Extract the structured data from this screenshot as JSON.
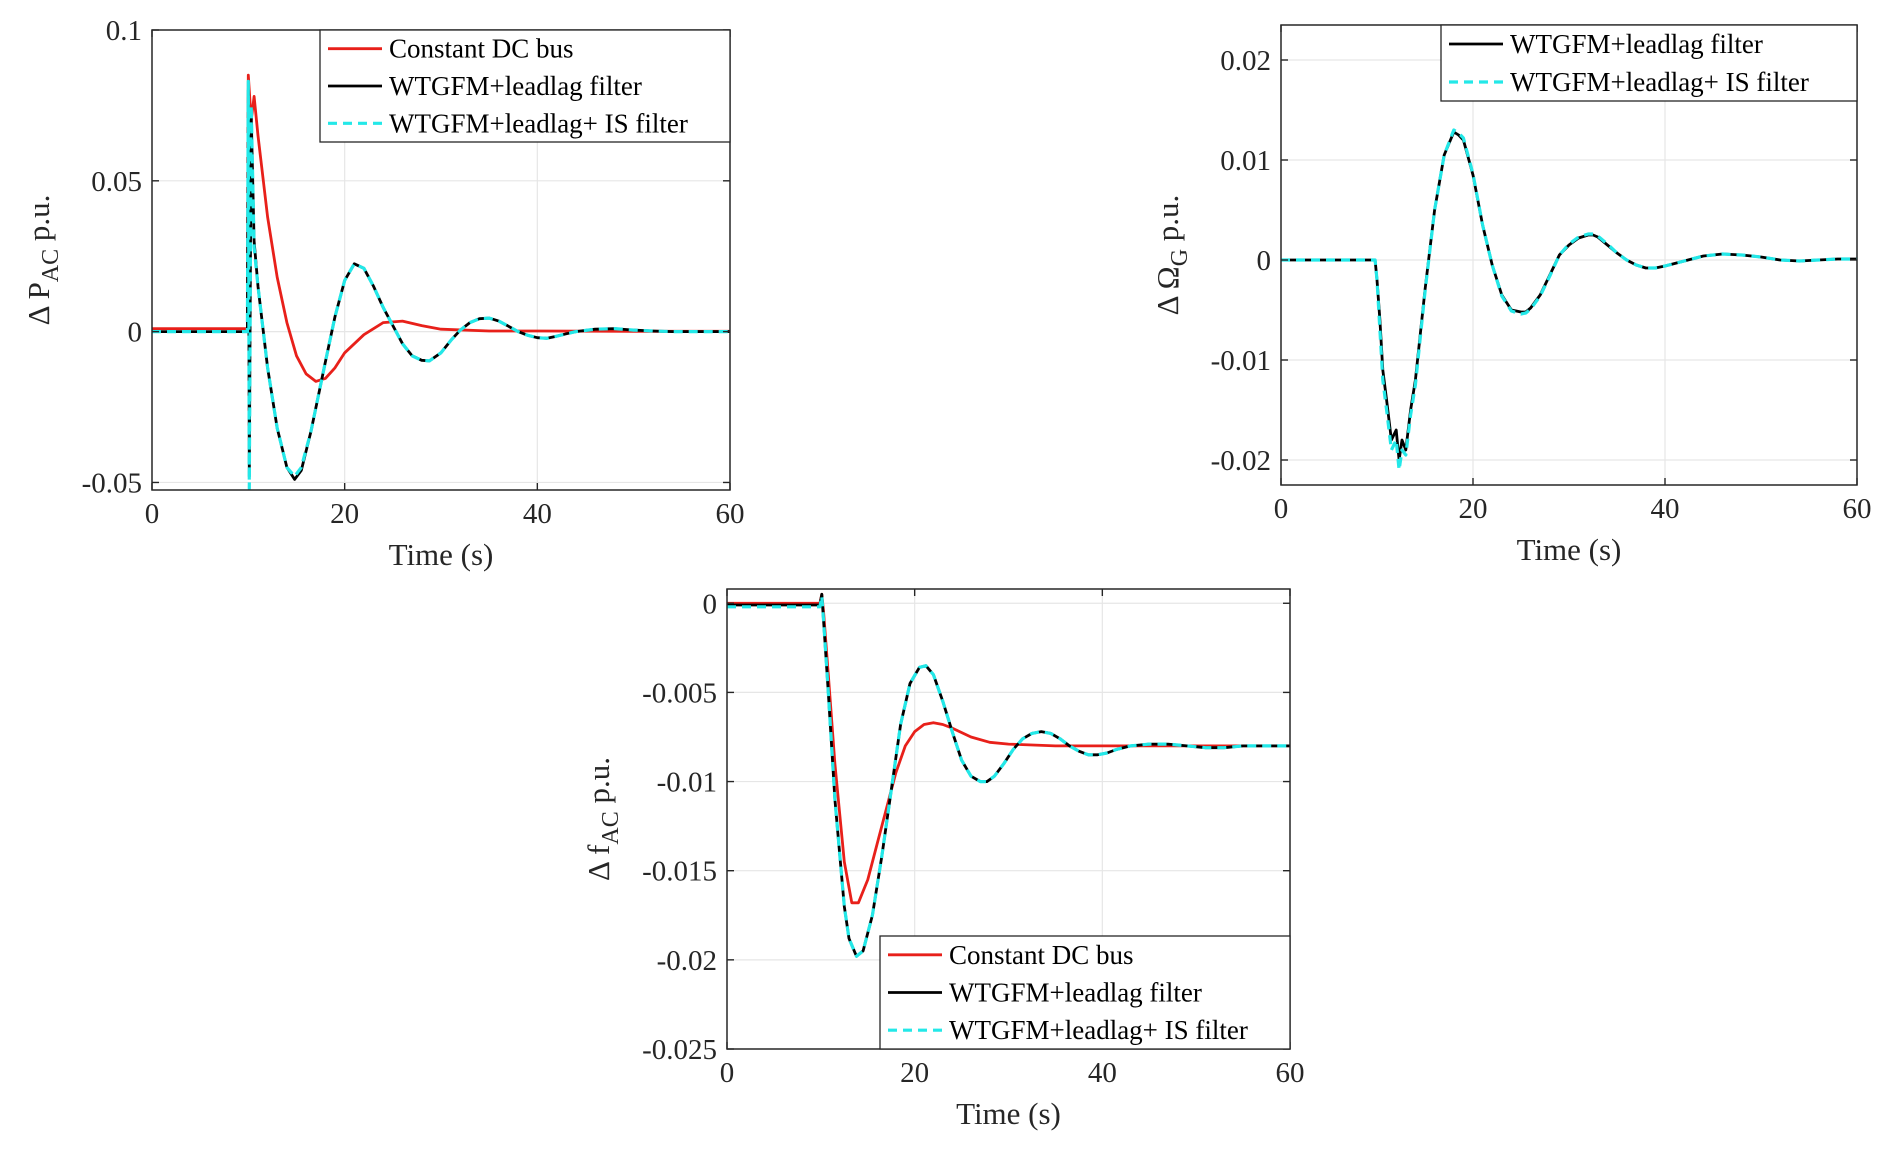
{
  "colors": {
    "constant": "#e8201a",
    "leadlag": "#000000",
    "is_filter": "#23e8e8"
  },
  "chart_data": [
    {
      "id": "pac",
      "type": "line",
      "xlabel": "Time (s)",
      "ylabel_main": "Δ P",
      "ylabel_sub": "AC",
      "ylabel_tail": " p.u.",
      "xlim": [
        0,
        60
      ],
      "ylim": [
        -0.0525,
        0.1
      ],
      "xticks": [
        0,
        20,
        40,
        60
      ],
      "xtick_labels": [
        "0",
        "20",
        "40",
        "60"
      ],
      "yticks": [
        -0.05,
        0,
        0.05,
        0.1
      ],
      "ytick_labels": [
        "-0.05",
        "0",
        "0.05",
        "0.1"
      ],
      "legend_position": "top-right",
      "series": [
        {
          "key": "constant",
          "name": "Constant DC bus",
          "style": "solid",
          "x": [
            0,
            9.9,
            10,
            10.3,
            10.6,
            11,
            12,
            13,
            14,
            15,
            16,
            17,
            18,
            19,
            20,
            22,
            24,
            26,
            28,
            30,
            35,
            40,
            50,
            60
          ],
          "y": [
            0.001,
            0.001,
            0.085,
            0.07,
            0.078,
            0.065,
            0.038,
            0.018,
            0.003,
            -0.008,
            -0.014,
            -0.0165,
            -0.0155,
            -0.012,
            -0.007,
            -0.001,
            0.003,
            0.0035,
            0.002,
            0.0008,
            0.0002,
            0.0002,
            0.0001,
            0.0001
          ]
        },
        {
          "key": "leadlag",
          "name": "WTGFM+leadlag filter",
          "style": "solid",
          "x": [
            0,
            9.9,
            10,
            10.1,
            10.3,
            10.6,
            11,
            12,
            13,
            14,
            14.8,
            15.5,
            16.5,
            18,
            19,
            20,
            21,
            22,
            23,
            24,
            26,
            27,
            28,
            28.8,
            30,
            31,
            32,
            33,
            34,
            35,
            36,
            37,
            38,
            39,
            40,
            41,
            42,
            43,
            44,
            46,
            48,
            50,
            52,
            54,
            56,
            58,
            60
          ],
          "y": [
            0,
            0,
            0.08,
            -0.048,
            0.072,
            0.03,
            0.015,
            -0.012,
            -0.032,
            -0.045,
            -0.049,
            -0.046,
            -0.033,
            -0.01,
            0.005,
            0.017,
            0.0225,
            0.021,
            0.015,
            0.008,
            -0.004,
            -0.008,
            -0.0095,
            -0.0097,
            -0.007,
            -0.003,
            0.0005,
            0.003,
            0.0043,
            0.0045,
            0.0035,
            0.0018,
            0,
            -0.0012,
            -0.002,
            -0.0022,
            -0.0015,
            -0.0007,
            0,
            0.0008,
            0.001,
            0.0005,
            0.0002,
            0,
            0,
            0,
            0
          ]
        },
        {
          "key": "is_filter",
          "name": "WTGFM+leadlag+ IS filter",
          "style": "dashed",
          "x": [
            0,
            9.9,
            10,
            10.1,
            10.3,
            10.6,
            11,
            12,
            13,
            14,
            14.8,
            15.5,
            16.5,
            18,
            19,
            20,
            21,
            22,
            23,
            24,
            26,
            27,
            28,
            28.8,
            30,
            31,
            32,
            33,
            34,
            35,
            36,
            37,
            38,
            39,
            40,
            41,
            42,
            43,
            44,
            46,
            48,
            50,
            52,
            54,
            56,
            58,
            60
          ],
          "y": [
            0,
            0,
            0.083,
            -0.052,
            0.075,
            0.028,
            0.015,
            -0.012,
            -0.032,
            -0.045,
            -0.048,
            -0.045,
            -0.033,
            -0.01,
            0.005,
            0.017,
            0.0225,
            0.021,
            0.015,
            0.008,
            -0.004,
            -0.008,
            -0.0095,
            -0.0097,
            -0.007,
            -0.003,
            0.0005,
            0.003,
            0.0043,
            0.0045,
            0.0035,
            0.0018,
            0,
            -0.0012,
            -0.002,
            -0.0022,
            -0.0015,
            -0.0007,
            0,
            0.0008,
            0.001,
            0.0005,
            0.0002,
            0,
            0,
            0,
            0
          ]
        }
      ]
    },
    {
      "id": "omega",
      "type": "line",
      "xlabel": "Time (s)",
      "ylabel_main": "Δ Ω",
      "ylabel_sub": "G",
      "ylabel_tail": " p.u.",
      "xlim": [
        0,
        60
      ],
      "ylim": [
        -0.0225,
        0.0235
      ],
      "xticks": [
        0,
        20,
        40,
        60
      ],
      "xtick_labels": [
        "0",
        "20",
        "40",
        "60"
      ],
      "yticks": [
        -0.02,
        -0.01,
        0,
        0.01,
        0.02
      ],
      "ytick_labels": [
        "-0.02",
        "-0.01",
        "0",
        "0.01",
        "0.02"
      ],
      "legend_position": "top-right",
      "series": [
        {
          "key": "leadlag",
          "name": "WTGFM+leadlag filter",
          "style": "solid",
          "x": [
            0,
            9.8,
            10,
            10.3,
            10.6,
            11,
            11.5,
            12,
            12.3,
            12.6,
            13,
            13.5,
            14,
            15,
            16,
            17,
            18,
            18.5,
            19,
            20,
            21,
            22,
            23,
            24,
            25,
            25.5,
            26,
            27,
            28,
            29,
            30,
            31,
            32,
            32.5,
            33,
            34,
            35,
            36,
            37,
            38,
            39,
            40,
            42,
            44,
            46,
            48,
            50,
            52,
            54,
            56,
            58,
            60
          ],
          "y": [
            0,
            0,
            -0.002,
            -0.006,
            -0.011,
            -0.014,
            -0.018,
            -0.017,
            -0.02,
            -0.018,
            -0.019,
            -0.015,
            -0.012,
            -0.003,
            0.005,
            0.0105,
            0.0128,
            0.0125,
            0.012,
            0.0085,
            0.0035,
            -0.0005,
            -0.0035,
            -0.005,
            -0.0052,
            -0.0052,
            -0.0048,
            -0.0035,
            -0.0015,
            0.0005,
            0.0015,
            0.0022,
            0.0025,
            0.0025,
            0.0023,
            0.0015,
            0.0007,
            0,
            -0.0005,
            -0.0008,
            -0.0008,
            -0.0006,
            -0.0001,
            0.0004,
            0.0006,
            0.0005,
            0.0003,
            0,
            -0.0001,
            0,
            0.0001,
            0.0001
          ]
        },
        {
          "key": "is_filter",
          "name": "WTGFM+leadlag+ IS filter",
          "style": "dashed",
          "x": [
            0,
            9.8,
            10,
            10.3,
            10.6,
            11,
            11.5,
            12,
            12.3,
            12.6,
            13,
            13.5,
            14,
            15,
            16,
            17,
            18,
            18.5,
            19,
            20,
            21,
            22,
            23,
            24,
            25,
            25.5,
            26,
            27,
            28,
            29,
            30,
            31,
            32,
            32.5,
            33,
            34,
            35,
            36,
            37,
            38,
            39,
            40,
            42,
            44,
            46,
            48,
            50,
            52,
            54,
            56,
            58,
            60
          ],
          "y": [
            0,
            0,
            -0.002,
            -0.007,
            -0.012,
            -0.015,
            -0.019,
            -0.018,
            -0.021,
            -0.019,
            -0.0195,
            -0.0155,
            -0.0125,
            -0.0032,
            0.005,
            0.0105,
            0.013,
            0.0127,
            0.0122,
            0.0086,
            0.0035,
            -0.0005,
            -0.0036,
            -0.0051,
            -0.0054,
            -0.0053,
            -0.0049,
            -0.0036,
            -0.0016,
            0.0005,
            0.0016,
            0.0023,
            0.0026,
            0.0026,
            0.0024,
            0.0016,
            0.0007,
            0,
            -0.0005,
            -0.0008,
            -0.0008,
            -0.0006,
            -0.0001,
            0.0004,
            0.0006,
            0.0005,
            0.0003,
            0,
            -0.0001,
            0,
            0.0001,
            0.0001
          ]
        }
      ]
    },
    {
      "id": "fac",
      "type": "line",
      "xlabel": "Time (s)",
      "ylabel_main": "Δ f",
      "ylabel_sub": "AC",
      "ylabel_tail": " p.u.",
      "xlim": [
        0,
        60
      ],
      "ylim": [
        -0.025,
        0.0008
      ],
      "xticks": [
        0,
        20,
        40,
        60
      ],
      "xtick_labels": [
        "0",
        "20",
        "40",
        "60"
      ],
      "yticks": [
        -0.025,
        -0.02,
        -0.015,
        -0.01,
        -0.005,
        0
      ],
      "ytick_labels": [
        "-0.025",
        "-0.02",
        "-0.015",
        "-0.01",
        "-0.005",
        "0"
      ],
      "legend_position": "bottom-right",
      "series": [
        {
          "key": "constant",
          "name": "Constant DC bus",
          "style": "solid",
          "x": [
            0,
            9.9,
            10.1,
            10.3,
            10.8,
            11.5,
            12.5,
            13.3,
            14,
            15,
            16,
            17,
            18,
            19,
            20,
            21,
            22,
            23,
            24,
            26,
            28,
            30,
            35,
            40,
            50,
            60
          ],
          "y": [
            0,
            0,
            0.0005,
            -0.0005,
            -0.004,
            -0.009,
            -0.0145,
            -0.0168,
            -0.0168,
            -0.0155,
            -0.0135,
            -0.0115,
            -0.0095,
            -0.008,
            -0.0072,
            -0.0068,
            -0.0067,
            -0.0068,
            -0.007,
            -0.0075,
            -0.0078,
            -0.0079,
            -0.008,
            -0.008,
            -0.008,
            -0.008
          ]
        },
        {
          "key": "leadlag",
          "name": "WTGFM+leadlag filter",
          "style": "solid",
          "x": [
            0,
            9.9,
            10.1,
            10.3,
            10.8,
            11.5,
            12.5,
            13,
            13.8,
            14.5,
            15.5,
            16.5,
            17.5,
            18.5,
            19.5,
            20.5,
            21.2,
            22,
            23,
            24,
            25,
            26,
            27,
            27.7,
            28.5,
            29.5,
            30.5,
            31.5,
            32.5,
            33.5,
            34.5,
            35.5,
            36.5,
            37.5,
            38.5,
            39.5,
            40.5,
            41.5,
            43,
            45,
            47,
            49,
            51,
            53,
            55,
            57,
            60
          ],
          "y": [
            -0.0001,
            -0.0001,
            0.0005,
            -0.001,
            -0.005,
            -0.011,
            -0.017,
            -0.0188,
            -0.0198,
            -0.0195,
            -0.0175,
            -0.0142,
            -0.0105,
            -0.0068,
            -0.0045,
            -0.0036,
            -0.0035,
            -0.004,
            -0.0055,
            -0.0072,
            -0.0088,
            -0.0097,
            -0.01,
            -0.01,
            -0.0097,
            -0.009,
            -0.0082,
            -0.0076,
            -0.0073,
            -0.0072,
            -0.0073,
            -0.0076,
            -0.008,
            -0.0083,
            -0.0085,
            -0.0085,
            -0.0084,
            -0.0082,
            -0.008,
            -0.0079,
            -0.0079,
            -0.008,
            -0.0081,
            -0.0081,
            -0.008,
            -0.008,
            -0.008
          ]
        },
        {
          "key": "is_filter",
          "name": "WTGFM+leadlag+ IS filter",
          "style": "dashed",
          "x": [
            0,
            9.9,
            10.1,
            10.3,
            10.8,
            11.5,
            12.5,
            13,
            13.8,
            14.5,
            15.5,
            16.5,
            17.5,
            18.5,
            19.5,
            20.5,
            21.2,
            22,
            23,
            24,
            25,
            26,
            27,
            27.7,
            28.5,
            29.5,
            30.5,
            31.5,
            32.5,
            33.5,
            34.5,
            35.5,
            36.5,
            37.5,
            38.5,
            39.5,
            40.5,
            41.5,
            43,
            45,
            47,
            49,
            51,
            53,
            55,
            57,
            60
          ],
          "y": [
            -0.0002,
            -0.0002,
            0.0004,
            -0.001,
            -0.005,
            -0.011,
            -0.017,
            -0.0188,
            -0.0198,
            -0.0195,
            -0.0175,
            -0.0142,
            -0.0105,
            -0.0068,
            -0.0045,
            -0.0036,
            -0.0035,
            -0.004,
            -0.0055,
            -0.0072,
            -0.0088,
            -0.0097,
            -0.01,
            -0.01,
            -0.0097,
            -0.009,
            -0.0082,
            -0.0076,
            -0.0073,
            -0.0072,
            -0.0073,
            -0.0076,
            -0.008,
            -0.0083,
            -0.0085,
            -0.0085,
            -0.0084,
            -0.0082,
            -0.008,
            -0.0079,
            -0.0079,
            -0.008,
            -0.0081,
            -0.0081,
            -0.008,
            -0.008,
            -0.008
          ]
        }
      ]
    }
  ]
}
